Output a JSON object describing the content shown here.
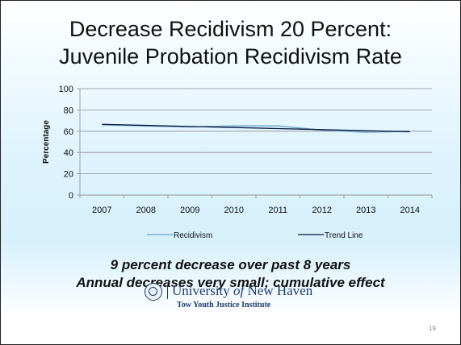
{
  "slide": {
    "title_line1": "Decrease Recidivism 20 Percent:",
    "title_line2": "Juvenile Probation Recidivism Rate",
    "caption_line1": "9 percent decrease over past 8 years",
    "caption_line2": "Annual decreases very small; cumulative effect",
    "university": "University of New Haven",
    "university_pre": "University ",
    "university_of": "of",
    "university_post": " New Haven",
    "institute": "Tow Youth Justice Institute",
    "page_number": "19"
  },
  "chart_data": {
    "type": "line",
    "title": "",
    "xlabel": "",
    "ylabel": "Percentage",
    "x": [
      "2007",
      "2008",
      "2009",
      "2010",
      "2011",
      "2012",
      "2013",
      "2014"
    ],
    "ylim": [
      0,
      100
    ],
    "yticks": [
      0,
      20,
      40,
      60,
      80,
      100
    ],
    "grid": true,
    "legend": "bottom",
    "series": [
      {
        "name": "Recidivism",
        "values": [
          66,
          65,
          64,
          65,
          65,
          61,
          59,
          60
        ],
        "color": "#7aaed8"
      },
      {
        "name": "Trend Line",
        "values": [
          66.5,
          65.5,
          64.5,
          63.5,
          62.5,
          61.5,
          60.5,
          59.5
        ],
        "color": "#0b1a3d"
      }
    ]
  }
}
